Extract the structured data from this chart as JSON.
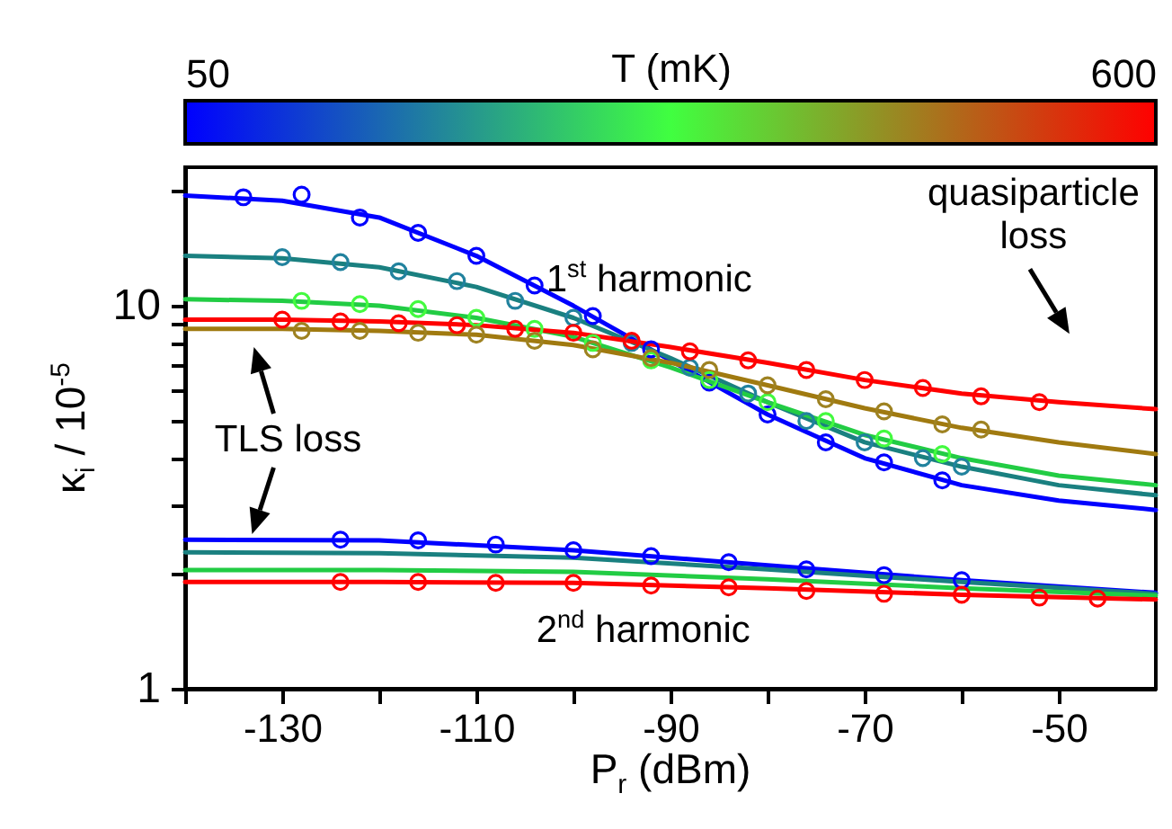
{
  "chart_data": {
    "type": "line",
    "xlabel": "P$_{r}$ (dBm)",
    "ylabel": "κ$_{i}$ / 10$^{-5}$",
    "clabel": "T (mK)",
    "clim": [
      50,
      600
    ],
    "cticks": [
      50,
      600
    ],
    "xlim": [
      -140,
      -40
    ],
    "xticks": [
      {
        "value": -140,
        "label": null
      },
      -130,
      {
        "value": -120,
        "label": null
      },
      -110,
      {
        "value": -100,
        "label": null
      },
      -90,
      {
        "value": -80,
        "label": null
      },
      -70,
      {
        "value": -60,
        "label": null
      },
      -50
    ],
    "ylim": [
      1,
      23
    ],
    "yticks": [
      1,
      {
        "value": 2,
        "label": null
      },
      {
        "value": 3,
        "label": null
      },
      {
        "value": 4,
        "label": null
      },
      {
        "value": 5,
        "label": null
      },
      {
        "value": 6,
        "label": null
      },
      {
        "value": 7,
        "label": null
      },
      {
        "value": 8,
        "label": null
      },
      {
        "value": 9,
        "label": null
      },
      10,
      {
        "value": 20,
        "label": null
      }
    ],
    "log": true,
    "grid": false,
    "line_style": "solid",
    "series": [
      {
        "color": "#0000ff",
        "x": [
          -140,
          -130,
          -120,
          -110,
          -100,
          -90,
          -80,
          -70,
          -60,
          -50,
          -40
        ],
        "values": [
          19.4,
          18.8,
          17,
          13.5,
          10,
          7.2,
          5.2,
          4.0,
          3.4,
          3.1,
          2.93
        ]
      },
      {
        "type": "line",
        "color": "#1a8080",
        "x": [
          -140,
          -130,
          -120,
          -110,
          -100,
          -90,
          -80,
          -70,
          -60,
          -50,
          -40
        ],
        "values": [
          13.5,
          13.3,
          12.6,
          11.2,
          9.3,
          7.3,
          5.6,
          4.4,
          3.8,
          3.4,
          3.2
        ]
      },
      {
        "type": "line",
        "color": "#22cc44",
        "x": [
          -140,
          -130,
          -120,
          -110,
          -100,
          -90,
          -80,
          -70,
          -60,
          -50,
          -40
        ],
        "values": [
          10.4,
          10.3,
          10.0,
          9.3,
          8.3,
          6.9,
          5.6,
          4.6,
          4.0,
          3.6,
          3.4
        ]
      },
      {
        "type": "line",
        "color": "#a07a10",
        "x": [
          -140,
          -130,
          -120,
          -110,
          -100,
          -90,
          -80,
          -70,
          -60,
          -50,
          -40
        ],
        "values": [
          8.7,
          8.7,
          8.6,
          8.4,
          7.9,
          7.1,
          6.2,
          5.4,
          4.8,
          4.4,
          4.1
        ]
      },
      {
        "type": "line",
        "color": "#ff0000",
        "x": [
          -140,
          -130,
          -120,
          -110,
          -100,
          -90,
          -80,
          -70,
          -60,
          -50,
          -40
        ],
        "values": [
          9.2,
          9.2,
          9.1,
          8.9,
          8.5,
          7.8,
          7.1,
          6.4,
          5.9,
          5.6,
          5.37
        ]
      },
      {
        "type": "line",
        "color": "#0000ff",
        "x": [
          -140,
          -120,
          -100,
          -80,
          -60,
          -40
        ],
        "values": [
          2.45,
          2.44,
          2.3,
          2.1,
          1.92,
          1.78
        ]
      },
      {
        "type": "line",
        "color": "#1a8080",
        "x": [
          -140,
          -120,
          -100,
          -80,
          -60,
          -40
        ],
        "values": [
          2.27,
          2.26,
          2.2,
          2.05,
          1.9,
          1.77
        ]
      },
      {
        "type": "line",
        "color": "#22cc44",
        "x": [
          -140,
          -120,
          -100,
          -80,
          -60,
          -40
        ],
        "values": [
          2.04,
          2.04,
          2.02,
          1.93,
          1.83,
          1.75
        ]
      },
      {
        "type": "line",
        "color": "#ff0000",
        "x": [
          -140,
          -120,
          -100,
          -80,
          -60,
          -40
        ],
        "values": [
          1.9,
          1.9,
          1.89,
          1.83,
          1.76,
          1.71
        ]
      },
      {
        "type": "scatter",
        "marker": "circle",
        "x": [
          -134,
          -128,
          -122,
          -116,
          -110,
          -104,
          -98,
          -92,
          -86,
          -80,
          -74,
          -68,
          -62
        ],
        "values": [
          19.2,
          19.5,
          17.0,
          15.5,
          13.5,
          11.3,
          9.4,
          7.7,
          6.3,
          5.2,
          4.4,
          3.9,
          3.5
        ],
        "cvalues": [
          50,
          50,
          50,
          50,
          50,
          50,
          50,
          50,
          50,
          50,
          50,
          50,
          50
        ]
      },
      {
        "type": "scatter",
        "marker": "circle",
        "x": [
          -130,
          -124,
          -118,
          -112,
          -106,
          -100,
          -94,
          -88,
          -82,
          -76,
          -70,
          -64,
          -60
        ],
        "values": [
          13.4,
          13.0,
          12.3,
          11.6,
          10.3,
          9.3,
          8.0,
          6.9,
          5.9,
          5.0,
          4.4,
          4.0,
          3.8
        ],
        "cvalues": [
          190,
          190,
          190,
          190,
          190,
          190,
          190,
          190,
          190,
          190,
          190,
          190,
          190
        ]
      },
      {
        "type": "scatter",
        "marker": "circle",
        "x": [
          -128,
          -122,
          -116,
          -110,
          -104,
          -98,
          -92,
          -86,
          -80,
          -74,
          -68,
          -62
        ],
        "values": [
          10.3,
          10.1,
          9.8,
          9.3,
          8.7,
          8.0,
          7.2,
          6.4,
          5.6,
          5.0,
          4.5,
          4.1
        ],
        "cvalues": [
          330,
          330,
          330,
          330,
          330,
          330,
          330,
          330,
          330,
          330,
          330,
          330
        ]
      },
      {
        "type": "scatter",
        "marker": "circle",
        "x": [
          -128,
          -122,
          -116,
          -110,
          -104,
          -98,
          -92,
          -86,
          -80,
          -74,
          -68,
          -62,
          -58
        ],
        "values": [
          8.6,
          8.6,
          8.5,
          8.4,
          8.1,
          7.7,
          7.3,
          6.8,
          6.2,
          5.7,
          5.3,
          4.9,
          4.75
        ],
        "cvalues": [
          460,
          460,
          460,
          460,
          460,
          460,
          460,
          460,
          460,
          460,
          460,
          460,
          460
        ]
      },
      {
        "type": "scatter",
        "marker": "circle",
        "x": [
          -130,
          -124,
          -118,
          -112,
          -106,
          -100,
          -94,
          -88,
          -82,
          -76,
          -70,
          -64,
          -58,
          -52
        ],
        "values": [
          9.2,
          9.1,
          9.0,
          8.9,
          8.7,
          8.5,
          8.1,
          7.6,
          7.2,
          6.8,
          6.4,
          6.1,
          5.8,
          5.6
        ],
        "cvalues": [
          600,
          600,
          600,
          600,
          600,
          600,
          600,
          600,
          600,
          600,
          600,
          600,
          600,
          600
        ]
      },
      {
        "type": "scatter",
        "marker": "circle",
        "x": [
          -124,
          -116,
          -108,
          -100,
          -92,
          -84,
          -76,
          -68,
          -60
        ],
        "values": [
          2.45,
          2.44,
          2.38,
          2.3,
          2.22,
          2.14,
          2.05,
          1.98,
          1.92
        ],
        "cvalues": [
          50,
          50,
          50,
          50,
          50,
          50,
          50,
          50,
          50
        ]
      },
      {
        "type": "scatter",
        "marker": "circle",
        "x": [
          -124,
          -116,
          -108,
          -100,
          -92,
          -84,
          -76,
          -68,
          -60,
          -52,
          -46
        ],
        "values": [
          1.9,
          1.9,
          1.89,
          1.89,
          1.86,
          1.84,
          1.8,
          1.77,
          1.76,
          1.73,
          1.72
        ],
        "cvalues": [
          600,
          600,
          600,
          600,
          600,
          600,
          600,
          600,
          600,
          600,
          600
        ]
      }
    ],
    "annotations": [
      "1$^{st}$ harmonic",
      "2$^{nd}$ harmonic",
      "TLS loss",
      "quasiparticle\nloss"
    ]
  }
}
